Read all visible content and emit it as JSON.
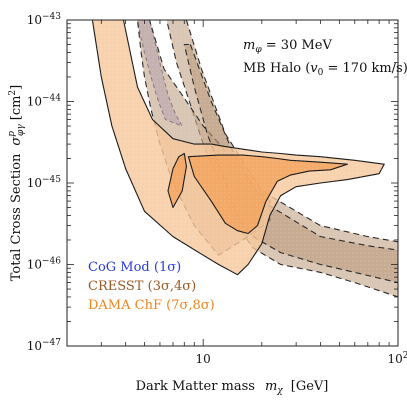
{
  "chart_data": {
    "type": "area",
    "xlabel_text": "Dark Matter mass",
    "xlabel_sym": "m",
    "xlabel_sub": "χ",
    "xlabel_unit": "[GeV]",
    "ylabel_text": "Total Cross Section",
    "ylabel_sym": "σ",
    "ylabel_sub": "φγ",
    "ylabel_sup": "p",
    "ylabel_unit": "[cm",
    "ylabel_unit_exp": "2",
    "ylabel_unit_close": "]",
    "x_scale": "log",
    "y_scale": "log",
    "xlim": [
      2,
      100
    ],
    "ylim": [
      1e-47,
      1e-43
    ],
    "x_ticks": [
      {
        "value": 10,
        "base": "10",
        "exp": ""
      },
      {
        "value": 100,
        "base": "10",
        "exp": "2"
      }
    ],
    "y_ticks": [
      {
        "value": 1e-43,
        "base": "10",
        "exp": "−43"
      },
      {
        "value": 1e-44,
        "base": "10",
        "exp": "−44"
      },
      {
        "value": 1e-45,
        "base": "10",
        "exp": "−45"
      },
      {
        "value": 1e-46,
        "base": "10",
        "exp": "−46"
      },
      {
        "value": 1e-47,
        "base": "10",
        "exp": "−47"
      }
    ],
    "annotations": [
      {
        "sym": "m",
        "sub": "φ",
        "rest": " = 30 MeV"
      },
      {
        "text": "MB Halo (",
        "sym": "v",
        "sub": "0",
        "rest": " = 170 km/s)"
      }
    ],
    "legend": {
      "placement": "bottom-left",
      "entries": [
        {
          "label": "CoG Mod",
          "sigma": "(1σ)",
          "color": "#2a3ce0"
        },
        {
          "label": "CRESST",
          "sigma": "(3σ,4σ)",
          "color": "#9a5a28"
        },
        {
          "label": "DAMA ChF",
          "sigma": "(7σ,8σ)",
          "color": "#f0851d"
        }
      ]
    },
    "series": [
      {
        "label": "CoG Mod",
        "color": "#b8b8f0",
        "stroke": "#1f2a7a",
        "dash": "4,3",
        "opacity": 0.85,
        "regions": [
          [
            [
              4.6,
              1e-43
            ],
            [
              5.3,
              1e-43
            ],
            [
              5.6,
              6e-44
            ],
            [
              6.1,
              2.5e-44
            ],
            [
              6.6,
              1.2e-44
            ],
            [
              7.2,
              7e-45
            ],
            [
              7.8,
              5e-45
            ],
            [
              6.4,
              6e-45
            ],
            [
              5.9,
              1e-44
            ],
            [
              5.4,
              2e-44
            ],
            [
              5.0,
              4e-44
            ],
            [
              4.8,
              6e-44
            ]
          ]
        ]
      },
      {
        "label": "CRESST 4σ",
        "color": "#c4a88c",
        "stroke": "#2b2b2b",
        "dash": "6,4",
        "opacity": 0.65,
        "regions": [
          [
            [
              8.2,
              1e-43
            ],
            [
              9.8,
              2.5e-44
            ],
            [
              13,
              4e-45
            ],
            [
              20,
              8e-46
            ],
            [
              40,
              3e-46
            ],
            [
              70,
              2.2e-46
            ],
            [
              100,
              1.9e-46
            ],
            [
              100,
              4e-47
            ],
            [
              60,
              6e-47
            ],
            [
              40,
              8e-47
            ],
            [
              25,
              1e-46
            ],
            [
              18,
              1.6e-46
            ],
            [
              15,
              3e-46
            ],
            [
              12,
              1e-45
            ],
            [
              10,
              3e-45
            ],
            [
              8.5,
              1e-44
            ],
            [
              7.3,
              3e-44
            ],
            [
              6.5,
              1e-43
            ]
          ],
          [
            [
              4.6,
              1e-43
            ],
            [
              5.3,
              1e-43
            ],
            [
              6.3,
              2.5e-44
            ],
            [
              8,
              1.1e-44
            ],
            [
              10,
              5e-45
            ],
            [
              13,
              2.5e-45
            ],
            [
              17,
              1e-45
            ],
            [
              22,
              6e-46
            ],
            [
              22,
              3.5e-46
            ],
            [
              17,
              2.2e-46
            ],
            [
              12,
              1.3e-46
            ],
            [
              9,
              3e-46
            ],
            [
              7,
              1e-45
            ],
            [
              6,
              3e-45
            ],
            [
              5.4,
              8e-45
            ],
            [
              5,
              2e-44
            ],
            [
              4.8,
              4e-44
            ]
          ]
        ]
      },
      {
        "label": "CRESST 3σ",
        "color": "#b89878",
        "stroke": "#2b2b2b",
        "dash": "6,4",
        "opacity": 0.55,
        "regions": [
          [
            [
              8.6,
              5e-44
            ],
            [
              11,
              1e-44
            ],
            [
              14,
              2.6e-45
            ],
            [
              20,
              6e-46
            ],
            [
              40,
              2.2e-46
            ],
            [
              70,
              1.7e-46
            ],
            [
              100,
              1.5e-46
            ],
            [
              100,
              6e-47
            ],
            [
              60,
              8e-47
            ],
            [
              40,
              1e-46
            ],
            [
              25,
              1.4e-46
            ],
            [
              18,
              2.2e-46
            ],
            [
              15,
              4e-46
            ],
            [
              12.5,
              1.3e-45
            ],
            [
              10.5,
              4e-45
            ],
            [
              9,
              1.5e-44
            ],
            [
              8,
              5e-44
            ]
          ]
        ]
      },
      {
        "label": "DAMA ChF 8σ",
        "color": "#f6c79a",
        "stroke": "#1a1a1a",
        "dash": "",
        "opacity": 0.8,
        "regions": [
          [
            [
              2.7,
              1e-43
            ],
            [
              3.9,
              1e-43
            ],
            [
              4.6,
              1.5e-44
            ],
            [
              5.5,
              6e-45
            ],
            [
              7,
              3.5e-45
            ],
            [
              9,
              3e-45
            ],
            [
              11,
              3e-45
            ],
            [
              13,
              2.8e-45
            ],
            [
              16,
              2.6e-45
            ],
            [
              20,
              2.4e-45
            ],
            [
              25,
              2.3e-45
            ],
            [
              30,
              2.2e-45
            ],
            [
              40,
              2.1e-45
            ],
            [
              60,
              1.9e-45
            ],
            [
              85,
              1.7e-45
            ],
            [
              80,
              1.3e-45
            ],
            [
              55,
              1.1e-45
            ],
            [
              40,
              1e-45
            ],
            [
              30,
              9e-46
            ],
            [
              25,
              7e-46
            ],
            [
              22,
              4e-46
            ],
            [
              20,
              1.8e-46
            ],
            [
              17,
              1e-46
            ],
            [
              15,
              7.5e-47
            ],
            [
              12,
              1e-46
            ],
            [
              10,
              1.3e-46
            ],
            [
              7,
              2.2e-46
            ],
            [
              5,
              4.5e-46
            ],
            [
              4,
              1.5e-45
            ],
            [
              3.4,
              5e-45
            ],
            [
              3.0,
              2e-44
            ]
          ]
        ]
      },
      {
        "label": "DAMA ChF 7σ",
        "color": "#f4a15a",
        "stroke": "#1a1a1a",
        "dash": "",
        "opacity": 0.8,
        "regions": [
          [
            [
              8.4,
              2.1e-45
            ],
            [
              12,
              2.2e-45
            ],
            [
              16,
              2.2e-45
            ],
            [
              20,
              2.1e-45
            ],
            [
              24,
              2e-45
            ],
            [
              28,
              1.9e-45
            ],
            [
              40,
              1.8e-45
            ],
            [
              55,
              1.7e-45
            ],
            [
              45,
              1.45e-45
            ],
            [
              35,
              1.4e-45
            ],
            [
              28,
              1.25e-45
            ],
            [
              24,
              1.05e-45
            ],
            [
              21,
              6e-46
            ],
            [
              19,
              3e-46
            ],
            [
              17,
              2.4e-46
            ],
            [
              15,
              2.6e-46
            ],
            [
              13,
              3.2e-46
            ],
            [
              11,
              6e-46
            ],
            [
              9,
              1.2e-45
            ]
          ],
          [
            [
              8.0,
              2.3e-45
            ],
            [
              8.2,
              1.6e-45
            ],
            [
              7.8,
              8e-46
            ],
            [
              7.0,
              5e-46
            ],
            [
              6.6,
              8e-46
            ],
            [
              7.0,
              1.5e-45
            ],
            [
              7.5,
              2.1e-45
            ]
          ]
        ]
      }
    ]
  }
}
